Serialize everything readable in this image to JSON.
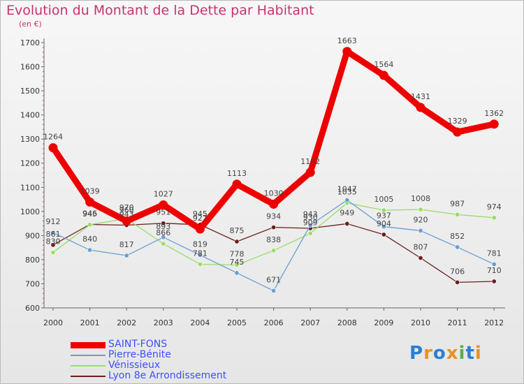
{
  "title": "Evolution du Montant de la Dette par Habitant",
  "unit": "(en €)",
  "logo": "Proxiti",
  "chart_data": {
    "type": "line",
    "title": "Evolution du Montant de la Dette par Habitant",
    "ylabel": "(en €)",
    "xlabel": "",
    "ylim": [
      600,
      1700
    ],
    "yticks": [
      600,
      700,
      800,
      900,
      1000,
      1100,
      1200,
      1300,
      1400,
      1500,
      1600,
      1700
    ],
    "grid": false,
    "legend_position": "bottom",
    "x": [
      "2000",
      "2001",
      "2002",
      "2003",
      "2004",
      "2005",
      "2006",
      "2007",
      "2008",
      "2009",
      "2010",
      "2011",
      "2012"
    ],
    "series": [
      {
        "name": "SAINT-FONS",
        "color": "#ee0000",
        "values": [
          1264,
          1039,
          960,
          1027,
          927,
          1113,
          1030,
          1162,
          1663,
          1564,
          1431,
          1329,
          1362
        ]
      },
      {
        "name": "Pierre-Bénite",
        "color": "#6a9fd0",
        "values": [
          912,
          840,
          817,
          893,
          819,
          745,
          671,
          943,
          1047,
          937,
          920,
          852,
          781
        ]
      },
      {
        "name": "Vénissieux",
        "color": "#99dd66",
        "values": [
          830,
          945,
          970,
          866,
          781,
          778,
          838,
          909,
          1035,
          1005,
          1008,
          987,
          974
        ]
      },
      {
        "name": "Lyon 8e  Arrondissement",
        "color": "#6b1f1f",
        "values": [
          861,
          946,
          943,
          951,
          945,
          875,
          934,
          930,
          949,
          904,
          807,
          706,
          710
        ]
      }
    ]
  }
}
